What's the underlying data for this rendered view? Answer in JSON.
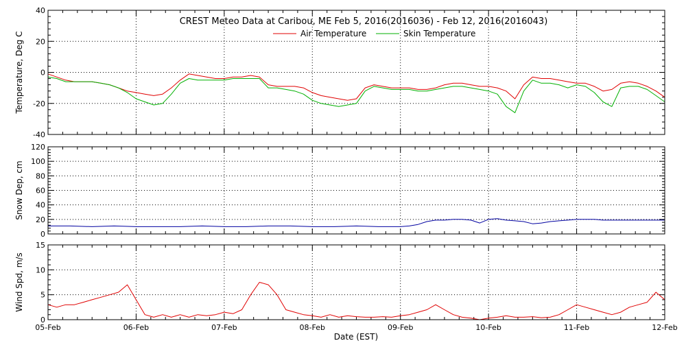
{
  "chart_data": {
    "type": "line",
    "title": "CREST Meteo Data at Caribou, ME   Feb  5, 2016(2016036) - Feb 12, 2016(2016043)",
    "xlabel": "Date (EST)",
    "x_tick_labels": [
      "05-Feb",
      "06-Feb",
      "07-Feb",
      "08-Feb",
      "09-Feb",
      "10-Feb",
      "11-Feb",
      "12-Feb"
    ],
    "xlim_days": [
      0,
      7
    ],
    "grid": true,
    "panels": [
      {
        "id": "temperature",
        "ylabel": "Temperature, Deg C",
        "ylim": [
          -40,
          40
        ],
        "yticks": [
          -40,
          -20,
          0,
          20,
          40
        ],
        "legend": {
          "placement": "top-center"
        },
        "series": [
          {
            "name": "Air Temperature",
            "color": "#e00000",
            "x": [
              0,
              0.1,
              0.2,
              0.3,
              0.4,
              0.5,
              0.6,
              0.7,
              0.8,
              0.9,
              1.0,
              1.1,
              1.2,
              1.3,
              1.4,
              1.5,
              1.6,
              1.7,
              1.8,
              1.9,
              2.0,
              2.1,
              2.2,
              2.3,
              2.4,
              2.5,
              2.6,
              2.7,
              2.8,
              2.9,
              3.0,
              3.1,
              3.2,
              3.3,
              3.4,
              3.5,
              3.6,
              3.7,
              3.8,
              3.9,
              4.0,
              4.1,
              4.2,
              4.3,
              4.4,
              4.5,
              4.6,
              4.7,
              4.8,
              4.9,
              5.0,
              5.1,
              5.2,
              5.3,
              5.4,
              5.5,
              5.6,
              5.7,
              5.8,
              5.9,
              6.0,
              6.1,
              6.2,
              6.3,
              6.4,
              6.5,
              6.6,
              6.7,
              6.8,
              6.9,
              7.0
            ],
            "values": [
              -1,
              -3,
              -5,
              -6,
              -6,
              -6,
              -7,
              -8,
              -10,
              -12,
              -13,
              -14,
              -15,
              -14,
              -10,
              -5,
              -1,
              -2,
              -3,
              -4,
              -4,
              -3,
              -3,
              -2,
              -3,
              -8,
              -9,
              -9,
              -9,
              -10,
              -13,
              -15,
              -16,
              -17,
              -18,
              -17,
              -10,
              -8,
              -9,
              -10,
              -10,
              -10,
              -11,
              -11,
              -10,
              -8,
              -7,
              -7,
              -8,
              -9,
              -9,
              -10,
              -12,
              -17,
              -8,
              -3,
              -4,
              -4,
              -5,
              -6,
              -7,
              -7,
              -9,
              -12,
              -11,
              -7,
              -6,
              -7,
              -9,
              -12,
              -16
            ]
          },
          {
            "name": "Skin Temperature",
            "color": "#00b000",
            "x": [
              0,
              0.1,
              0.2,
              0.3,
              0.4,
              0.5,
              0.6,
              0.7,
              0.8,
              0.9,
              1.0,
              1.1,
              1.2,
              1.3,
              1.4,
              1.5,
              1.6,
              1.7,
              1.8,
              1.9,
              2.0,
              2.1,
              2.2,
              2.3,
              2.4,
              2.5,
              2.6,
              2.7,
              2.8,
              2.9,
              3.0,
              3.1,
              3.2,
              3.3,
              3.4,
              3.5,
              3.6,
              3.7,
              3.8,
              3.9,
              4.0,
              4.1,
              4.2,
              4.3,
              4.4,
              4.5,
              4.6,
              4.7,
              4.8,
              4.9,
              5.0,
              5.1,
              5.2,
              5.3,
              5.4,
              5.5,
              5.6,
              5.7,
              5.8,
              5.9,
              6.0,
              6.1,
              6.2,
              6.3,
              6.4,
              6.5,
              6.6,
              6.7,
              6.8,
              6.9,
              7.0
            ],
            "values": [
              -3,
              -4,
              -6,
              -6,
              -6,
              -6,
              -7,
              -8,
              -10,
              -13,
              -17,
              -19,
              -21,
              -20,
              -14,
              -7,
              -4,
              -5,
              -5,
              -5,
              -5,
              -4,
              -4,
              -4,
              -4,
              -10,
              -10,
              -11,
              -12,
              -14,
              -18,
              -20,
              -21,
              -22,
              -21,
              -20,
              -12,
              -9,
              -10,
              -11,
              -11,
              -11,
              -12,
              -12,
              -11,
              -10,
              -9,
              -9,
              -10,
              -11,
              -12,
              -14,
              -22,
              -26,
              -12,
              -5,
              -7,
              -7,
              -8,
              -10,
              -8,
              -9,
              -13,
              -19,
              -22,
              -10,
              -9,
              -9,
              -11,
              -15,
              -19
            ]
          }
        ]
      },
      {
        "id": "snow",
        "ylabel": "Snow Dep, cm",
        "ylim": [
          0,
          120
        ],
        "yticks": [
          0,
          20,
          40,
          60,
          80,
          100,
          120
        ],
        "series": [
          {
            "color": "#0000a0",
            "x": [
              0,
              0.25,
              0.5,
              0.75,
              1.0,
              1.25,
              1.5,
              1.75,
              2.0,
              2.25,
              2.5,
              2.75,
              3.0,
              3.25,
              3.5,
              3.75,
              4.0,
              4.1,
              4.2,
              4.3,
              4.4,
              4.5,
              4.6,
              4.7,
              4.8,
              4.9,
              5.0,
              5.1,
              5.2,
              5.3,
              5.4,
              5.5,
              5.6,
              5.7,
              5.8,
              5.9,
              6.0,
              6.1,
              6.2,
              6.3,
              6.4,
              6.5,
              6.6,
              6.7,
              6.8,
              6.9,
              7.0
            ],
            "values": [
              11,
              11,
              10,
              11,
              10,
              10,
              10,
              11,
              10,
              10,
              11,
              11,
              10,
              10,
              11,
              10,
              10,
              11,
              13,
              17,
              19,
              19,
              20,
              20,
              19,
              15,
              20,
              21,
              19,
              18,
              17,
              14,
              15,
              17,
              18,
              19,
              20,
              20,
              20,
              19,
              19,
              19,
              19,
              19,
              19,
              19,
              19
            ]
          }
        ]
      },
      {
        "id": "wind",
        "ylabel": "Wind Spd, m/s",
        "ylim": [
          0,
          15
        ],
        "yticks": [
          0,
          5,
          10,
          15
        ],
        "series": [
          {
            "color": "#e00000",
            "x": [
              0,
              0.1,
              0.2,
              0.3,
              0.4,
              0.5,
              0.6,
              0.7,
              0.8,
              0.9,
              1.0,
              1.1,
              1.2,
              1.3,
              1.4,
              1.5,
              1.6,
              1.7,
              1.8,
              1.9,
              2.0,
              2.1,
              2.2,
              2.3,
              2.4,
              2.5,
              2.6,
              2.7,
              2.8,
              2.9,
              3.0,
              3.1,
              3.2,
              3.3,
              3.4,
              3.5,
              3.6,
              3.7,
              3.8,
              3.9,
              4.0,
              4.1,
              4.2,
              4.3,
              4.4,
              4.5,
              4.6,
              4.7,
              4.8,
              4.9,
              5.0,
              5.1,
              5.2,
              5.3,
              5.4,
              5.5,
              5.6,
              5.7,
              5.8,
              5.9,
              6.0,
              6.1,
              6.2,
              6.3,
              6.4,
              6.5,
              6.6,
              6.7,
              6.8,
              6.9,
              7.0
            ],
            "values": [
              3,
              2.5,
              3,
              3,
              3.5,
              4,
              4.5,
              5,
              5.5,
              7,
              4,
              1,
              0.5,
              1,
              0.5,
              1,
              0.5,
              1,
              0.8,
              1,
              1.5,
              1.2,
              2,
              5,
              7.5,
              7,
              5,
              2,
              1.5,
              1,
              0.8,
              0.5,
              1,
              0.5,
              0.8,
              0.6,
              0.5,
              0.5,
              0.6,
              0.5,
              0.8,
              1,
              1.5,
              2,
              3,
              2,
              1,
              0.5,
              0.3,
              0,
              0.3,
              0.5,
              0.8,
              0.5,
              0.5,
              0.6,
              0.4,
              0.5,
              1,
              2,
              3,
              2.5,
              2,
              1.5,
              1,
              1.5,
              2.5,
              3,
              3.5,
              5.5,
              4
            ]
          }
        ]
      }
    ]
  }
}
